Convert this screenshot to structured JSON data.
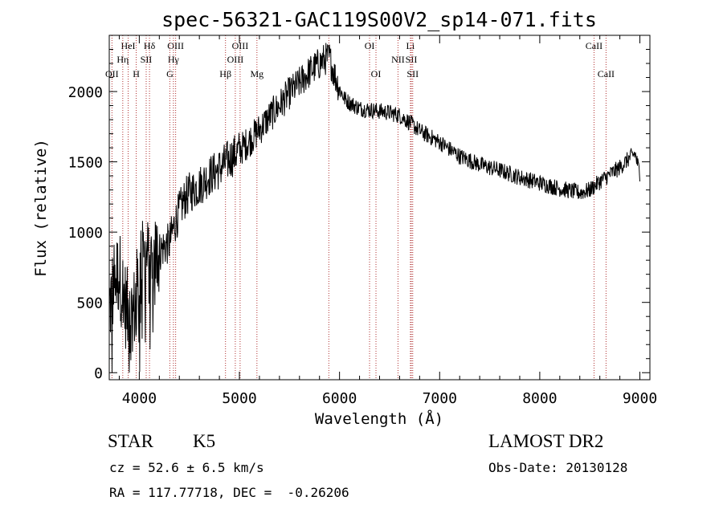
{
  "chart_data": {
    "type": "line",
    "title": "spec-56321-GAC119S00V2_sp14-071.fits",
    "xlabel": "Wavelength (Å)",
    "ylabel": "Flux (relative)",
    "xlim": [
      3700,
      9100
    ],
    "ylim": [
      -50,
      2400
    ],
    "xticks": [
      4000,
      5000,
      6000,
      7000,
      8000,
      9000
    ],
    "yticks": [
      0,
      500,
      1000,
      1500,
      2000
    ],
    "grid": false,
    "line_color": "#000000",
    "marker_color": "#b03030",
    "series": [
      {
        "x": [
          3700,
          3750,
          3800,
          3850,
          3900,
          3950,
          4000,
          4050,
          4100,
          4150,
          4200,
          4250,
          4300,
          4350,
          4400,
          4450,
          4500,
          4600,
          4700,
          4800,
          4900,
          5000,
          5100,
          5200,
          5300,
          5400,
          5500,
          5600,
          5700,
          5800,
          5850,
          5900,
          5950,
          6000,
          6050,
          6100,
          6200,
          6300,
          6400,
          6500,
          6600,
          6700,
          6800,
          6900,
          7000,
          7200,
          7400,
          7600,
          7800,
          8000,
          8200,
          8400,
          8500,
          8600,
          8700,
          8800,
          8900,
          8950,
          9000
        ],
        "y": [
          450,
          650,
          720,
          520,
          380,
          450,
          700,
          820,
          780,
          800,
          860,
          900,
          920,
          1050,
          1150,
          1230,
          1280,
          1330,
          1400,
          1450,
          1520,
          1580,
          1650,
          1730,
          1820,
          1900,
          1990,
          2060,
          2140,
          2200,
          2230,
          2240,
          2120,
          2020,
          1950,
          1920,
          1880,
          1870,
          1860,
          1850,
          1830,
          1780,
          1720,
          1680,
          1640,
          1540,
          1480,
          1440,
          1390,
          1350,
          1310,
          1280,
          1300,
          1360,
          1410,
          1460,
          1530,
          1560,
          1420
        ]
      }
    ],
    "lines": [
      {
        "label": "OII",
        "x": 3727,
        "row": 3
      },
      {
        "label": "HeI",
        "x": 3889,
        "row": 1
      },
      {
        "label": "Hη",
        "x": 3835,
        "row": 2
      },
      {
        "label": "H",
        "x": 3969,
        "row": 3
      },
      {
        "label": "Hδ",
        "x": 4102,
        "row": 1
      },
      {
        "label": "SII",
        "x": 4069,
        "row": 2
      },
      {
        "label": "OIII",
        "x": 4363,
        "row": 1
      },
      {
        "label": "Hγ",
        "x": 4341,
        "row": 2
      },
      {
        "label": "G",
        "x": 4305,
        "row": 3
      },
      {
        "label": "Hβ",
        "x": 4861,
        "row": 3
      },
      {
        "label": "OIII",
        "x": 5007,
        "row": 1
      },
      {
        "label": "OIII",
        "x": 4959,
        "row": 2
      },
      {
        "label": "Mg",
        "x": 5175,
        "row": 3
      },
      {
        "label": "",
        "x": 5893,
        "row": 0
      },
      {
        "label": "OI",
        "x": 6300,
        "row": 1
      },
      {
        "label": "OI",
        "x": 6364,
        "row": 3
      },
      {
        "label": "Li",
        "x": 6708,
        "row": 1
      },
      {
        "label": "NII",
        "x": 6584,
        "row": 2
      },
      {
        "label": "SII",
        "x": 6717,
        "row": 2
      },
      {
        "label": "SII",
        "x": 6731,
        "row": 3
      },
      {
        "label": "CaII",
        "x": 8542,
        "row": 1
      },
      {
        "label": "CaII",
        "x": 8662,
        "row": 3
      }
    ]
  },
  "info": {
    "object_class": "STAR",
    "subclass": "K5",
    "survey": "LAMOST DR2",
    "cz": "cz = 52.6 ± 6.5 km/s",
    "obs_date": "Obs-Date: 20130128",
    "coords": "RA = 117.77718, DEC =  -0.26206"
  }
}
